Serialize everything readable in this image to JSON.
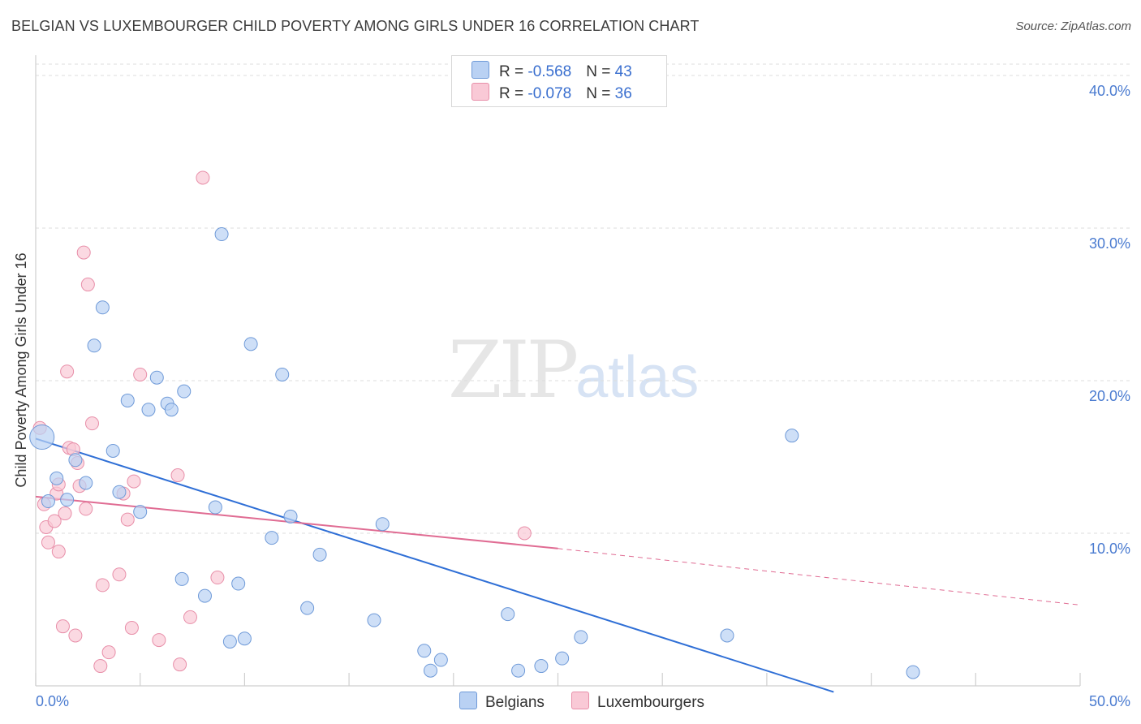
{
  "header": {
    "title": "BELGIAN VS LUXEMBOURGER CHILD POVERTY AMONG GIRLS UNDER 16 CORRELATION CHART",
    "source": "Source: ZipAtlas.com"
  },
  "watermark": {
    "zip": "ZIP",
    "atlas": "atlas"
  },
  "legend": {
    "rows": [
      {
        "r_label": "R = ",
        "r_value": "-0.568",
        "n_label": "N = ",
        "n_value": "43"
      },
      {
        "r_label": "R = ",
        "r_value": "-0.078",
        "n_label": "N = ",
        "n_value": "36"
      }
    ]
  },
  "bottom_legend": {
    "belgians": "Belgians",
    "luxembourgers": "Luxembourgers"
  },
  "colors": {
    "belgian_fill": "#b9d1f3",
    "belgian_stroke": "#6f9ad8",
    "belgian_line": "#2f6fd6",
    "lux_fill": "#f9c9d6",
    "lux_stroke": "#e88fa9",
    "lux_line": "#e06c93",
    "tick": "#4a7bd0",
    "grid": "#dcdcdc"
  },
  "chart_data": {
    "type": "scatter",
    "title": "BELGIAN VS LUXEMBOURGER CHILD POVERTY AMONG GIRLS UNDER 16 CORRELATION CHART",
    "xlabel": "",
    "ylabel": "Child Poverty Among Girls Under 16",
    "xlim": [
      0,
      50
    ],
    "ylim": [
      0,
      40
    ],
    "x_tick_labels": [
      "0.0%",
      "50.0%"
    ],
    "y_ticks": [
      10,
      20,
      30,
      40
    ],
    "y_tick_labels": [
      "10.0%",
      "20.0%",
      "30.0%",
      "40.0%"
    ],
    "grid": true,
    "legend_position": "top-center",
    "series": [
      {
        "name": "Belgians",
        "points": [
          [
            0.3,
            16.3
          ],
          [
            1.0,
            13.6
          ],
          [
            1.5,
            12.2
          ],
          [
            1.9,
            14.8
          ],
          [
            2.4,
            13.3
          ],
          [
            3.2,
            24.8
          ],
          [
            2.8,
            22.3
          ],
          [
            3.7,
            15.4
          ],
          [
            4.0,
            12.7
          ],
          [
            4.4,
            18.7
          ],
          [
            5.0,
            11.4
          ],
          [
            5.4,
            18.1
          ],
          [
            5.8,
            20.2
          ],
          [
            6.3,
            18.5
          ],
          [
            6.5,
            18.1
          ],
          [
            7.1,
            19.3
          ],
          [
            7.0,
            7.0
          ],
          [
            8.1,
            5.9
          ],
          [
            8.6,
            11.7
          ],
          [
            8.9,
            29.6
          ],
          [
            9.3,
            2.9
          ],
          [
            9.7,
            6.7
          ],
          [
            10.0,
            3.1
          ],
          [
            10.3,
            22.4
          ],
          [
            11.3,
            9.7
          ],
          [
            11.8,
            20.4
          ],
          [
            12.2,
            11.1
          ],
          [
            13.0,
            5.1
          ],
          [
            13.6,
            8.6
          ],
          [
            16.2,
            4.3
          ],
          [
            16.6,
            10.6
          ],
          [
            18.6,
            2.3
          ],
          [
            18.9,
            1.0
          ],
          [
            19.4,
            1.7
          ],
          [
            22.6,
            4.7
          ],
          [
            23.1,
            1.0
          ],
          [
            24.2,
            1.3
          ],
          [
            25.2,
            1.8
          ],
          [
            26.1,
            3.2
          ],
          [
            33.1,
            3.3
          ],
          [
            36.2,
            16.4
          ],
          [
            42.0,
            0.9
          ],
          [
            0.6,
            12.1
          ]
        ]
      },
      {
        "name": "Luxembourgers",
        "points": [
          [
            0.2,
            16.9
          ],
          [
            0.4,
            11.9
          ],
          [
            0.5,
            10.4
          ],
          [
            0.6,
            9.4
          ],
          [
            0.9,
            10.8
          ],
          [
            1.0,
            12.6
          ],
          [
            1.1,
            13.2
          ],
          [
            1.1,
            8.8
          ],
          [
            1.3,
            3.9
          ],
          [
            1.4,
            11.3
          ],
          [
            1.5,
            20.6
          ],
          [
            1.6,
            15.6
          ],
          [
            1.8,
            15.5
          ],
          [
            1.9,
            3.3
          ],
          [
            2.0,
            14.6
          ],
          [
            2.1,
            13.1
          ],
          [
            2.3,
            28.4
          ],
          [
            2.4,
            11.6
          ],
          [
            2.5,
            26.3
          ],
          [
            2.7,
            17.2
          ],
          [
            3.1,
            1.3
          ],
          [
            3.2,
            6.6
          ],
          [
            3.5,
            2.2
          ],
          [
            4.0,
            7.3
          ],
          [
            4.2,
            12.6
          ],
          [
            4.4,
            10.9
          ],
          [
            4.6,
            3.8
          ],
          [
            4.7,
            13.4
          ],
          [
            5.0,
            20.4
          ],
          [
            5.9,
            3.0
          ],
          [
            6.9,
            1.4
          ],
          [
            6.8,
            13.8
          ],
          [
            7.4,
            4.5
          ],
          [
            8.0,
            33.3
          ],
          [
            8.7,
            7.1
          ],
          [
            23.4,
            10.0
          ]
        ]
      }
    ],
    "trend_lines": [
      {
        "series": "Belgians",
        "x": [
          0,
          38.2
        ],
        "y": [
          16.2,
          -0.4
        ],
        "dashed_extension": false
      },
      {
        "series": "Luxembourgers",
        "x": [
          0,
          25
        ],
        "y": [
          12.4,
          9.0
        ],
        "dashed_to": [
          50,
          5.3
        ]
      }
    ]
  }
}
